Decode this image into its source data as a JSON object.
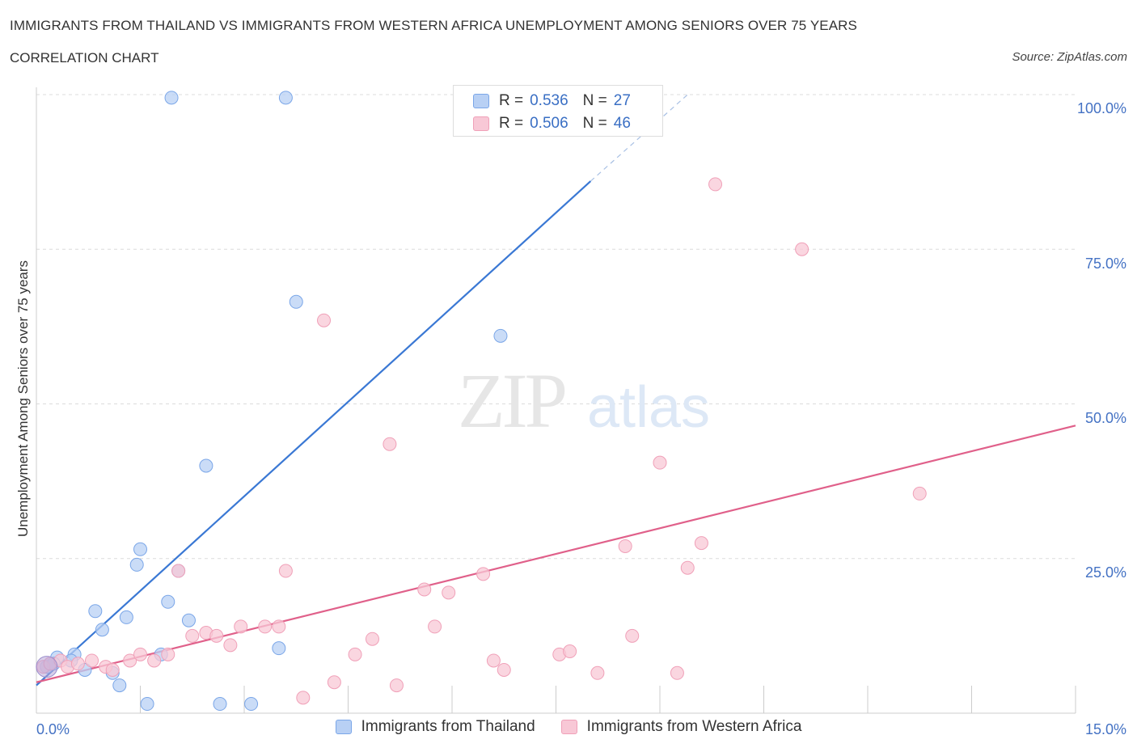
{
  "header": {
    "title": "IMMIGRANTS FROM THAILAND VS IMMIGRANTS FROM WESTERN AFRICA UNEMPLOYMENT AMONG SENIORS OVER 75 YEARS",
    "subtitle": "CORRELATION CHART",
    "source": "Source: ZipAtlas.com"
  },
  "legend": {
    "r_label": "R =",
    "n_label": "N =",
    "series": [
      {
        "r": "0.536",
        "n": "27"
      },
      {
        "r": "0.506",
        "n": "46"
      }
    ]
  },
  "watermark": {
    "zip": "ZIP",
    "atlas": "atlas"
  },
  "chart_data": {
    "type": "scatter",
    "title": "IMMIGRANTS FROM THAILAND VS IMMIGRANTS FROM WESTERN AFRICA UNEMPLOYMENT AMONG SENIORS OVER 75 YEARS",
    "subtitle": "CORRELATION CHART",
    "xlabel": "",
    "ylabel": "Unemployment Among Seniors over 75 years",
    "xlim": [
      0,
      15
    ],
    "ylim": [
      0,
      100
    ],
    "x_tick_labels": [
      "0.0%",
      "15.0%"
    ],
    "y_tick_labels": [
      "25.0%",
      "50.0%",
      "75.0%",
      "100.0%"
    ],
    "y_ticks": [
      25,
      50,
      75,
      100
    ],
    "grid": true,
    "legend_position": "top-center and bottom",
    "series": [
      {
        "name": "Immigrants from Thailand",
        "color": "#7aa6e8",
        "fill": "#b8d0f4",
        "line_color": "#3a78d4",
        "r": 0.536,
        "n": 27,
        "trend": {
          "x": [
            0,
            8.0
          ],
          "y": [
            4.5,
            86.0
          ],
          "dashed_to": [
            9.4,
            100
          ]
        },
        "points": [
          [
            0.15,
            7.5
          ],
          [
            0.2,
            8.0
          ],
          [
            0.3,
            9.0
          ],
          [
            0.55,
            9.5
          ],
          [
            0.5,
            8.5
          ],
          [
            0.7,
            7.0
          ],
          [
            0.85,
            16.5
          ],
          [
            0.95,
            13.5
          ],
          [
            1.1,
            6.5
          ],
          [
            1.2,
            4.5
          ],
          [
            1.3,
            15.5
          ],
          [
            1.45,
            24.0
          ],
          [
            1.5,
            26.5
          ],
          [
            1.6,
            1.5
          ],
          [
            1.8,
            9.5
          ],
          [
            1.9,
            18.0
          ],
          [
            1.95,
            99.5
          ],
          [
            2.05,
            23.0
          ],
          [
            2.2,
            15.0
          ],
          [
            2.45,
            40.0
          ],
          [
            2.65,
            1.5
          ],
          [
            3.1,
            1.5
          ],
          [
            3.5,
            10.5
          ],
          [
            3.6,
            99.5
          ],
          [
            3.75,
            66.5
          ],
          [
            6.7,
            61.0
          ],
          [
            0.25,
            8.0
          ]
        ]
      },
      {
        "name": "Immigrants from Western Africa",
        "color": "#f0a0b8",
        "fill": "#f8c8d6",
        "line_color": "#e0608a",
        "r": 0.506,
        "n": 46,
        "trend": {
          "x": [
            0,
            15.0
          ],
          "y": [
            5.0,
            46.5
          ]
        },
        "points": [
          [
            0.1,
            7.5
          ],
          [
            0.2,
            8.0
          ],
          [
            0.35,
            8.5
          ],
          [
            0.45,
            7.5
          ],
          [
            0.6,
            8.0
          ],
          [
            0.8,
            8.5
          ],
          [
            1.0,
            7.5
          ],
          [
            1.1,
            7.0
          ],
          [
            1.35,
            8.5
          ],
          [
            1.5,
            9.5
          ],
          [
            1.7,
            8.5
          ],
          [
            1.9,
            9.5
          ],
          [
            2.05,
            23.0
          ],
          [
            2.25,
            12.5
          ],
          [
            2.45,
            13.0
          ],
          [
            2.6,
            12.5
          ],
          [
            2.8,
            11.0
          ],
          [
            2.95,
            14.0
          ],
          [
            3.3,
            14.0
          ],
          [
            3.5,
            14.0
          ],
          [
            3.6,
            23.0
          ],
          [
            3.85,
            2.5
          ],
          [
            4.15,
            63.5
          ],
          [
            4.3,
            5.0
          ],
          [
            4.6,
            9.5
          ],
          [
            4.85,
            12.0
          ],
          [
            5.1,
            43.5
          ],
          [
            5.2,
            4.5
          ],
          [
            5.6,
            20.0
          ],
          [
            5.75,
            14.0
          ],
          [
            5.95,
            19.5
          ],
          [
            6.45,
            22.5
          ],
          [
            6.6,
            8.5
          ],
          [
            6.75,
            7.0
          ],
          [
            7.55,
            9.5
          ],
          [
            7.7,
            10.0
          ],
          [
            8.1,
            6.5
          ],
          [
            8.5,
            27.0
          ],
          [
            8.6,
            12.5
          ],
          [
            9.0,
            40.5
          ],
          [
            9.25,
            6.5
          ],
          [
            9.4,
            23.5
          ],
          [
            9.6,
            27.5
          ],
          [
            9.8,
            85.5
          ],
          [
            11.05,
            75.0
          ],
          [
            12.75,
            35.5
          ]
        ]
      }
    ]
  }
}
